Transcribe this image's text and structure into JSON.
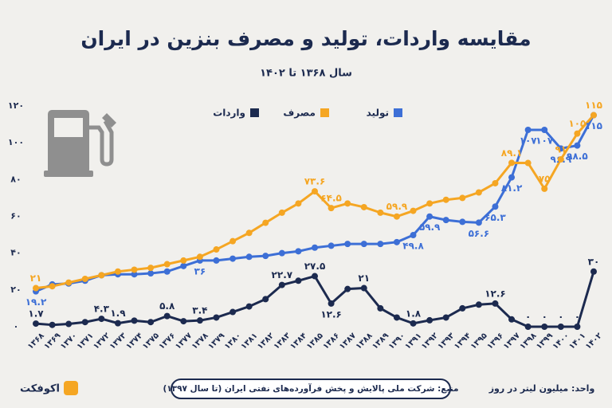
{
  "title": "مقایسه واردات، تولید و مصرف بنزین در ایران",
  "subtitle": "سال ۱۳۶۸ تا ۱۴۰۲",
  "source": "منبع: شرکت ملی پالایش و پخش فرآورده‌های نفتی ایران (تا سال ۱۳۹۷)",
  "unit": "واحد: میلیون لیتر در روز",
  "brand": "اکوفکت",
  "chart_data": {
    "type": "line",
    "categories": [
      "۱۳۶۸",
      "۱۳۶۹",
      "۱۳۷۰",
      "۱۳۷۱",
      "۱۳۷۲",
      "۱۳۷۳",
      "۱۳۷۴",
      "۱۳۷۵",
      "۱۳۷۶",
      "۱۳۷۷",
      "۱۳۷۸",
      "۱۳۷۹",
      "۱۳۸۰",
      "۱۳۸۱",
      "۱۳۸۲",
      "۱۳۸۳",
      "۱۳۸۴",
      "۱۳۸۵",
      "۱۳۸۶",
      "۱۳۸۷",
      "۱۳۸۸",
      "۱۳۸۹",
      "۱۳۹۰",
      "۱۳۹۱",
      "۱۳۹۲",
      "۱۳۹۳",
      "۱۳۹۴",
      "۱۳۹۵",
      "۱۳۹۶",
      "۱۳۹۷",
      "۱۳۹۸",
      "۱۳۹۹",
      "۱۴۰۰",
      "۱۴۰۱",
      "۱۴۰۲"
    ],
    "series": [
      {
        "name": "تولید",
        "color": "#3d6fd6",
        "values": [
          19.2,
          23,
          23.5,
          25,
          28,
          28.5,
          28.5,
          29,
          30,
          33,
          36,
          36,
          37,
          38,
          38.5,
          40,
          41,
          43,
          44,
          45,
          45,
          45,
          46,
          49.8,
          59.9,
          58,
          57,
          56.6,
          65.3,
          81.2,
          107,
          107,
          96.9,
          98.5,
          115
        ],
        "value_labels": [
          "۱۹.۲",
          null,
          null,
          null,
          null,
          null,
          null,
          null,
          null,
          null,
          "۳۶",
          null,
          null,
          null,
          null,
          null,
          null,
          null,
          null,
          null,
          null,
          null,
          null,
          "۴۹.۸",
          "۵۹.۹",
          null,
          null,
          "۵۶.۶",
          "۶۵.۳",
          "۸۱.۲",
          "۱۰۷",
          "۱۰۷",
          "۹۶.۹",
          "۹۸.۵",
          "۱۱۵"
        ]
      },
      {
        "name": "مصرف",
        "color": "#f5a623",
        "values": [
          21,
          22,
          24,
          26,
          28,
          30,
          31,
          32,
          34,
          36,
          38,
          42,
          46.5,
          51,
          56.5,
          62,
          67,
          73.6,
          64.5,
          67,
          65,
          62,
          59.9,
          63,
          67,
          69,
          70,
          73,
          78,
          89.1,
          89,
          75,
          91,
          105,
          115
        ],
        "value_labels": [
          "۲۱",
          null,
          null,
          null,
          null,
          null,
          null,
          null,
          null,
          null,
          null,
          null,
          null,
          null,
          null,
          null,
          null,
          "۷۳.۶",
          "۶۴.۵",
          null,
          null,
          null,
          "۵۹.۹",
          null,
          null,
          null,
          null,
          null,
          null,
          "۸۹.۱",
          null,
          "۷۵",
          "۹۱",
          "۱۰۵",
          "۱۱۵"
        ]
      },
      {
        "name": "واردات",
        "color": "#1c2a4f",
        "values": [
          1.7,
          1,
          1.5,
          2.5,
          4.3,
          1.9,
          3.3,
          2.5,
          5.8,
          3,
          3.4,
          5,
          8,
          11,
          15,
          22.7,
          25,
          27.5,
          12.6,
          20.5,
          21,
          10,
          5,
          1.8,
          3.5,
          5,
          10,
          12,
          12.6,
          4,
          0,
          0,
          0,
          0,
          30
        ],
        "value_labels": [
          "۱.۷",
          null,
          null,
          null,
          "۴.۳",
          "۱.۹",
          null,
          null,
          "۵.۸",
          null,
          "۳.۴",
          null,
          null,
          null,
          null,
          "۲۲.۷",
          null,
          "۲۷.۵",
          "۱۲.۶",
          null,
          "۲۱",
          null,
          null,
          "۱.۸",
          null,
          null,
          null,
          null,
          "۱۲.۶",
          null,
          "۰",
          "۰",
          "۰",
          "۰",
          "۳۰"
        ]
      }
    ],
    "ylim": [
      0,
      120
    ],
    "yticks": [
      {
        "value": 0,
        "label": "۰"
      },
      {
        "value": 20,
        "label": "۲۰"
      },
      {
        "value": 40,
        "label": "۴۰"
      },
      {
        "value": 60,
        "label": "۶۰"
      },
      {
        "value": 80,
        "label": "۸۰"
      },
      {
        "value": 100,
        "label": "۱۰۰"
      },
      {
        "value": 120,
        "label": "۱۲۰"
      }
    ],
    "grid": false
  }
}
